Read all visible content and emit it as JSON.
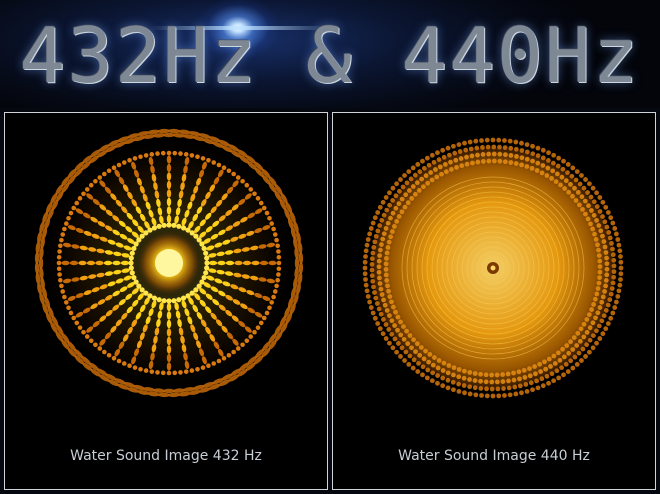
{
  "header": {
    "title": "432Hz & 440Hz"
  },
  "panels": [
    {
      "caption": "Water Sound Image 432 Hz",
      "accent": "#ffd21a"
    },
    {
      "caption": "Water Sound Image 440 Hz",
      "accent": "#ffab1a"
    }
  ]
}
